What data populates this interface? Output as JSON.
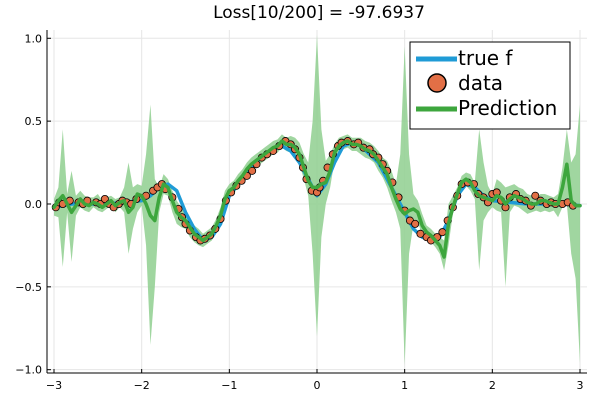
{
  "chart_data": {
    "type": "line",
    "title": "Loss[10/200] = -97.6937",
    "xlim": [
      -3.08,
      3.08
    ],
    "ylim": [
      -1.02,
      1.05
    ],
    "xticks": [
      -3,
      -2,
      -1,
      0,
      1,
      2,
      3
    ],
    "xtick_labels": [
      "−3",
      "−2",
      "−1",
      "0",
      "1",
      "2",
      "3"
    ],
    "yticks": [
      -1.0,
      -0.5,
      0.0,
      0.5,
      1.0
    ],
    "ytick_labels": [
      "−1.0",
      "−0.5",
      "0.0",
      "0.5",
      "1.0"
    ],
    "grid": true,
    "legend": {
      "position": "top-right",
      "entries": [
        "true f",
        "data",
        "Prediction"
      ]
    },
    "colors": {
      "true_f": "#1f9bd6",
      "data": "#e26f46",
      "prediction": "#3da63d",
      "band": "#8fcf8f"
    },
    "series": [
      {
        "name": "true f",
        "kind": "line",
        "x": [
          -3.0,
          -2.8,
          -2.6,
          -2.4,
          -2.2,
          -2.0,
          -1.9,
          -1.8,
          -1.7,
          -1.6,
          -1.5,
          -1.4,
          -1.3,
          -1.2,
          -1.1,
          -1.0,
          -0.9,
          -0.8,
          -0.7,
          -0.6,
          -0.5,
          -0.4,
          -0.3,
          -0.2,
          -0.1,
          0.0,
          0.1,
          0.2,
          0.3,
          0.4,
          0.5,
          0.6,
          0.7,
          0.8,
          0.9,
          1.0,
          1.1,
          1.2,
          1.3,
          1.4,
          1.5,
          1.6,
          1.7,
          1.8,
          1.9,
          2.0,
          2.2,
          2.4,
          2.6,
          2.8,
          3.0
        ],
        "y": [
          -0.02,
          0.0,
          0.0,
          0.0,
          0.01,
          0.02,
          0.05,
          0.1,
          0.12,
          0.08,
          -0.05,
          -0.15,
          -0.22,
          -0.2,
          -0.12,
          0.05,
          0.12,
          0.18,
          0.25,
          0.3,
          0.33,
          0.35,
          0.32,
          0.25,
          0.15,
          0.05,
          0.12,
          0.25,
          0.35,
          0.37,
          0.35,
          0.3,
          0.25,
          0.15,
          0.05,
          -0.05,
          -0.15,
          -0.2,
          -0.22,
          -0.2,
          -0.1,
          0.05,
          0.12,
          0.1,
          0.05,
          0.02,
          0.01,
          0.0,
          0.0,
          0.0,
          -0.01
        ]
      },
      {
        "name": "data",
        "kind": "scatter",
        "x": [
          -2.98,
          -2.94,
          -2.9,
          -2.82,
          -2.72,
          -2.67,
          -2.62,
          -2.52,
          -2.47,
          -2.42,
          -2.37,
          -2.32,
          -2.26,
          -2.22,
          -2.17,
          -2.12,
          -2.06,
          -1.95,
          -1.87,
          -1.82,
          -1.77,
          -1.73,
          -1.65,
          -1.58,
          -1.54,
          -1.5,
          -1.45,
          -1.38,
          -1.33,
          -1.28,
          -1.22,
          -1.16,
          -1.1,
          -1.04,
          -0.98,
          -0.92,
          -0.86,
          -0.8,
          -0.74,
          -0.69,
          -0.63,
          -0.57,
          -0.5,
          -0.43,
          -0.36,
          -0.3,
          -0.25,
          -0.2,
          -0.16,
          -0.12,
          -0.06,
          0.0,
          0.03,
          0.07,
          0.12,
          0.18,
          0.24,
          0.28,
          0.35,
          0.42,
          0.47,
          0.53,
          0.6,
          0.64,
          0.7,
          0.75,
          0.8,
          0.86,
          0.93,
          1.0,
          1.06,
          1.12,
          1.18,
          1.25,
          1.3,
          1.37,
          1.43,
          1.49,
          1.55,
          1.6,
          1.65,
          1.72,
          1.79,
          1.84,
          1.9,
          1.95,
          2.0,
          2.05,
          2.1,
          2.15,
          2.2,
          2.27,
          2.32,
          2.38,
          2.44,
          2.49,
          2.55,
          2.62,
          2.67,
          2.72,
          2.8,
          2.86,
          2.92
        ],
        "y": [
          -0.02,
          0.01,
          0.0,
          0.02,
          0.01,
          0.0,
          0.02,
          0.01,
          0.0,
          0.03,
          0.0,
          -0.02,
          0.0,
          0.02,
          0.01,
          0.0,
          0.03,
          0.05,
          0.08,
          0.1,
          0.12,
          0.09,
          0.04,
          -0.03,
          -0.08,
          -0.12,
          -0.16,
          -0.2,
          -0.22,
          -0.21,
          -0.19,
          -0.15,
          -0.09,
          0.02,
          0.07,
          0.11,
          0.14,
          0.17,
          0.2,
          0.24,
          0.28,
          0.3,
          0.32,
          0.35,
          0.38,
          0.36,
          0.33,
          0.28,
          0.22,
          0.15,
          0.08,
          0.07,
          0.1,
          0.14,
          0.22,
          0.3,
          0.35,
          0.37,
          0.38,
          0.36,
          0.37,
          0.34,
          0.33,
          0.3,
          0.28,
          0.24,
          0.2,
          0.13,
          0.04,
          -0.04,
          -0.1,
          -0.12,
          -0.18,
          -0.2,
          -0.22,
          -0.2,
          -0.17,
          -0.1,
          -0.02,
          0.05,
          0.12,
          0.13,
          0.12,
          0.06,
          0.04,
          0.01,
          0.06,
          0.07,
          0.02,
          -0.02,
          0.04,
          0.06,
          0.03,
          0.02,
          -0.01,
          0.05,
          0.02,
          0.0,
          0.01,
          0.0,
          0.0,
          0.01,
          -0.01
        ]
      },
      {
        "name": "Prediction",
        "kind": "line",
        "x": [
          -3.0,
          -2.95,
          -2.9,
          -2.85,
          -2.8,
          -2.75,
          -2.7,
          -2.65,
          -2.6,
          -2.55,
          -2.5,
          -2.45,
          -2.4,
          -2.35,
          -2.3,
          -2.25,
          -2.2,
          -2.15,
          -2.1,
          -2.05,
          -2.0,
          -1.95,
          -1.9,
          -1.85,
          -1.8,
          -1.75,
          -1.7,
          -1.65,
          -1.6,
          -1.55,
          -1.5,
          -1.45,
          -1.4,
          -1.35,
          -1.3,
          -1.25,
          -1.2,
          -1.15,
          -1.1,
          -1.05,
          -1.0,
          -0.95,
          -0.9,
          -0.85,
          -0.8,
          -0.75,
          -0.7,
          -0.65,
          -0.6,
          -0.55,
          -0.5,
          -0.45,
          -0.4,
          -0.35,
          -0.3,
          -0.25,
          -0.2,
          -0.15,
          -0.1,
          -0.05,
          0.0,
          0.05,
          0.1,
          0.15,
          0.2,
          0.25,
          0.3,
          0.35,
          0.4,
          0.45,
          0.5,
          0.55,
          0.6,
          0.65,
          0.7,
          0.75,
          0.8,
          0.85,
          0.9,
          0.95,
          1.0,
          1.05,
          1.1,
          1.15,
          1.2,
          1.25,
          1.3,
          1.35,
          1.4,
          1.45,
          1.5,
          1.55,
          1.6,
          1.65,
          1.7,
          1.75,
          1.8,
          1.85,
          1.9,
          1.95,
          2.0,
          2.05,
          2.1,
          2.15,
          2.2,
          2.25,
          2.3,
          2.35,
          2.4,
          2.45,
          2.5,
          2.55,
          2.6,
          2.65,
          2.7,
          2.75,
          2.8,
          2.85,
          2.9,
          2.95,
          3.0
        ],
        "y": [
          -0.02,
          0.02,
          0.05,
          0.0,
          -0.05,
          -0.01,
          0.03,
          0.0,
          -0.01,
          0.01,
          0.0,
          -0.02,
          0.0,
          0.02,
          -0.01,
          0.01,
          0.02,
          -0.05,
          -0.02,
          0.06,
          0.05,
          0.0,
          -0.07,
          -0.1,
          0.04,
          0.12,
          0.1,
          0.02,
          -0.05,
          -0.08,
          -0.1,
          -0.14,
          -0.18,
          -0.2,
          -0.22,
          -0.2,
          -0.18,
          -0.13,
          -0.07,
          0.03,
          0.08,
          0.1,
          0.14,
          0.17,
          0.21,
          0.24,
          0.26,
          0.28,
          0.3,
          0.32,
          0.34,
          0.35,
          0.38,
          0.36,
          0.36,
          0.34,
          0.3,
          0.22,
          0.14,
          0.1,
          0.1,
          0.12,
          0.13,
          0.2,
          0.31,
          0.35,
          0.37,
          0.38,
          0.36,
          0.36,
          0.35,
          0.33,
          0.32,
          0.3,
          0.26,
          0.22,
          0.18,
          0.1,
          0.03,
          -0.03,
          -0.06,
          -0.04,
          -0.03,
          -0.05,
          -0.13,
          -0.17,
          -0.19,
          -0.22,
          -0.25,
          -0.32,
          -0.12,
          -0.02,
          0.06,
          0.13,
          0.15,
          0.13,
          0.08,
          0.05,
          0.04,
          0.03,
          0.02,
          0.05,
          0.04,
          0.0,
          0.03,
          0.05,
          0.04,
          0.03,
          0.01,
          0.0,
          0.0,
          0.02,
          0.02,
          0.01,
          0.0,
          0.0,
          0.1,
          0.24,
          0.02,
          -0.01,
          -0.01
        ]
      }
    ],
    "band": {
      "name": "Prediction uncertainty",
      "x": [
        -3.0,
        -2.95,
        -2.9,
        -2.85,
        -2.8,
        -2.75,
        -2.7,
        -2.65,
        -2.6,
        -2.55,
        -2.5,
        -2.45,
        -2.4,
        -2.35,
        -2.3,
        -2.25,
        -2.2,
        -2.15,
        -2.1,
        -2.05,
        -2.0,
        -1.95,
        -1.9,
        -1.85,
        -1.8,
        -1.75,
        -1.7,
        -1.65,
        -1.6,
        -1.55,
        -1.5,
        -1.45,
        -1.4,
        -1.35,
        -1.3,
        -1.25,
        -1.2,
        -1.15,
        -1.1,
        -1.05,
        -1.0,
        -0.95,
        -0.9,
        -0.85,
        -0.8,
        -0.75,
        -0.7,
        -0.65,
        -0.6,
        -0.55,
        -0.5,
        -0.45,
        -0.4,
        -0.35,
        -0.3,
        -0.25,
        -0.2,
        -0.15,
        -0.1,
        -0.05,
        0.0,
        0.05,
        0.1,
        0.15,
        0.2,
        0.25,
        0.3,
        0.35,
        0.4,
        0.45,
        0.5,
        0.55,
        0.6,
        0.65,
        0.7,
        0.75,
        0.8,
        0.85,
        0.9,
        0.95,
        1.0,
        1.05,
        1.1,
        1.15,
        1.2,
        1.25,
        1.3,
        1.35,
        1.4,
        1.45,
        1.5,
        1.55,
        1.6,
        1.65,
        1.7,
        1.75,
        1.8,
        1.85,
        1.9,
        1.95,
        2.0,
        2.05,
        2.1,
        2.15,
        2.2,
        2.25,
        2.3,
        2.35,
        2.4,
        2.45,
        2.5,
        2.55,
        2.6,
        2.65,
        2.7,
        2.75,
        2.8,
        2.85,
        2.9,
        2.95,
        3.0
      ],
      "lower": [
        -0.07,
        -0.08,
        -0.38,
        -0.05,
        -0.35,
        -0.07,
        -0.02,
        -0.04,
        -0.05,
        -0.02,
        -0.04,
        -0.05,
        -0.03,
        -0.01,
        -0.05,
        -0.02,
        -0.05,
        -0.3,
        -0.15,
        -0.05,
        -0.01,
        -0.25,
        -0.85,
        -0.5,
        -0.05,
        0.06,
        0.05,
        -0.05,
        -0.12,
        -0.14,
        -0.15,
        -0.2,
        -0.23,
        -0.25,
        -0.26,
        -0.24,
        -0.22,
        -0.17,
        -0.12,
        -0.02,
        0.04,
        0.06,
        0.1,
        0.13,
        0.17,
        0.2,
        0.22,
        0.24,
        0.26,
        0.28,
        0.3,
        0.31,
        0.34,
        0.32,
        0.31,
        0.28,
        0.24,
        0.15,
        0.05,
        -0.3,
        -0.8,
        -0.2,
        0.0,
        0.1,
        0.26,
        0.3,
        0.33,
        0.34,
        0.32,
        0.32,
        0.3,
        0.28,
        0.27,
        0.25,
        0.2,
        0.16,
        0.1,
        0.02,
        -0.05,
        -0.15,
        -0.97,
        -0.3,
        -0.12,
        -0.1,
        -0.2,
        -0.21,
        -0.23,
        -0.26,
        -0.3,
        -0.4,
        -0.25,
        -0.06,
        0.02,
        0.09,
        0.11,
        0.08,
        0.03,
        -0.4,
        -0.1,
        -0.05,
        -0.02,
        -0.04,
        -0.05,
        -0.5,
        -0.05,
        -0.01,
        -0.02,
        -0.04,
        -0.06,
        -0.05,
        -0.04,
        -0.05,
        -0.04,
        -0.05,
        -0.04,
        -0.08,
        -0.02,
        0.0,
        -0.3,
        -0.45,
        -0.96
      ],
      "upper": [
        0.03,
        0.1,
        0.45,
        0.06,
        0.2,
        0.05,
        0.08,
        0.05,
        0.04,
        0.04,
        0.06,
        0.02,
        0.04,
        0.05,
        0.03,
        0.04,
        0.1,
        0.25,
        0.1,
        0.12,
        0.11,
        0.3,
        0.6,
        0.15,
        0.1,
        0.18,
        0.15,
        0.08,
        0.02,
        -0.02,
        -0.05,
        -0.08,
        -0.13,
        -0.15,
        -0.18,
        -0.16,
        -0.14,
        -0.09,
        -0.02,
        0.08,
        0.12,
        0.14,
        0.18,
        0.21,
        0.25,
        0.28,
        0.3,
        0.32,
        0.34,
        0.36,
        0.38,
        0.39,
        0.42,
        0.4,
        0.41,
        0.4,
        0.37,
        0.3,
        0.25,
        0.5,
        1.02,
        0.45,
        0.26,
        0.3,
        0.36,
        0.4,
        0.41,
        0.42,
        0.4,
        0.4,
        0.4,
        0.38,
        0.37,
        0.35,
        0.32,
        0.28,
        0.26,
        0.2,
        0.12,
        0.3,
        0.95,
        0.3,
        0.06,
        0.02,
        -0.06,
        -0.13,
        -0.15,
        -0.18,
        -0.2,
        -0.22,
        0.0,
        0.05,
        0.1,
        0.17,
        0.19,
        0.18,
        0.13,
        0.45,
        0.25,
        0.11,
        0.06,
        0.15,
        0.13,
        0.1,
        0.11,
        0.12,
        0.1,
        0.09,
        0.06,
        0.05,
        0.04,
        0.06,
        0.06,
        0.05,
        0.04,
        0.06,
        0.22,
        0.45,
        0.25,
        0.3,
        0.6
      ]
    }
  }
}
